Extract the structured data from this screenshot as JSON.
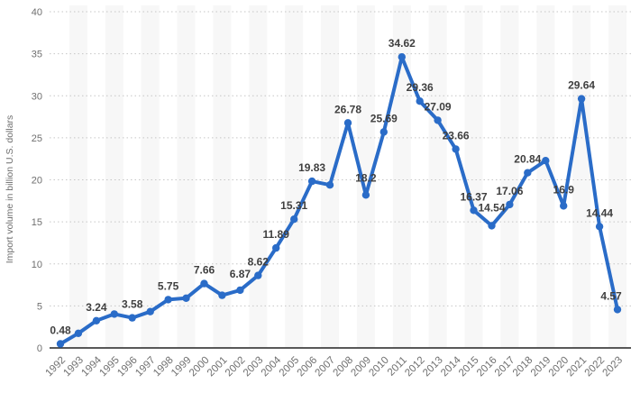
{
  "chart_data": {
    "type": "line",
    "title": "",
    "xlabel": "",
    "ylabel": "Import volume in billion U.S. dollars",
    "legend": "none",
    "grid": "horizontal-dotted",
    "background_bands": "alternating vertical stripes on odd years",
    "ylim": [
      0,
      40
    ],
    "yticks": [
      0,
      5,
      10,
      15,
      20,
      25,
      30,
      35,
      40
    ],
    "categories": [
      "1992",
      "1993",
      "1994",
      "1995",
      "1996",
      "1997",
      "1998",
      "1999",
      "2000",
      "2001",
      "2002",
      "2003",
      "2004",
      "2005",
      "2006",
      "2007",
      "2008",
      "2009",
      "2010",
      "2011",
      "2012",
      "2013",
      "2014",
      "2015",
      "2016",
      "2017",
      "2018",
      "2019",
      "2020",
      "2021",
      "2022",
      "2023"
    ],
    "values": [
      0.48,
      1.74,
      3.24,
      4.03,
      3.58,
      4.32,
      5.75,
      5.92,
      7.66,
      6.26,
      6.87,
      8.62,
      11.89,
      15.31,
      19.83,
      19.39,
      26.78,
      18.2,
      25.69,
      34.62,
      29.36,
      27.09,
      23.66,
      16.37,
      14.54,
      17.06,
      20.84,
      22.28,
      16.9,
      29.64,
      14.44,
      4.57
    ],
    "point_labels": [
      "0.48",
      null,
      "3.24",
      null,
      "3.58",
      null,
      "5.75",
      null,
      "7.66",
      null,
      "6.87",
      "8.62",
      "11.89",
      "15.31",
      "19.83",
      null,
      "26.78",
      "18.2",
      "25.69",
      "34.62",
      "29.36",
      "27.09",
      "23.66",
      "16.37",
      "14.54",
      "17.06",
      "20.84",
      null,
      "16.9",
      "29.64",
      "14.44",
      "4.57"
    ],
    "label_offsets": {
      "10": {
        "dy": -14
      },
      "17": {
        "dy": -15
      },
      "24": {
        "dy": -16
      },
      "28": {
        "dy": -14
      },
      "31": {
        "dx": -7,
        "dy": -11
      }
    },
    "marker": "circle",
    "colors": {
      "line": "#2a6cc8",
      "point_label": "#3f3f3f",
      "axis_text": "#6f6f6f",
      "ylabel_text": "#6e6e6e",
      "gridline": "#c6c6c6",
      "band": "#f7f7f7",
      "axis_line": "#222222",
      "background": "#ffffff"
    }
  }
}
